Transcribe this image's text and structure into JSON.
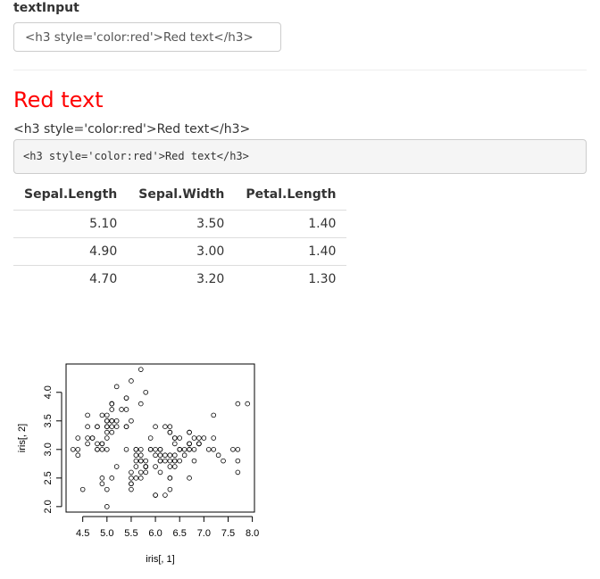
{
  "input": {
    "label": "textInput",
    "value": "<h3 style='color:red'>Red text</h3>"
  },
  "output": {
    "html_heading": "Red text",
    "raw_text": "<h3 style='color:red'>Red text</h3>",
    "code": "<h3 style='color:red'>Red text</h3>"
  },
  "table": {
    "headers": [
      "Sepal.Length",
      "Sepal.Width",
      "Petal.Length"
    ],
    "rows": [
      [
        "5.10",
        "3.50",
        "1.40"
      ],
      [
        "4.90",
        "3.00",
        "1.40"
      ],
      [
        "4.70",
        "3.20",
        "1.30"
      ]
    ]
  },
  "chart_data": {
    "type": "scatter",
    "title": "",
    "xlabel": "iris[, 1]",
    "ylabel": "iris[, 2]",
    "xlim": [
      4.3,
      7.9
    ],
    "ylim": [
      2.0,
      4.4
    ],
    "xticks": [
      "4.5",
      "5.0",
      "5.5",
      "6.0",
      "6.5",
      "7.0",
      "7.5",
      "8.0"
    ],
    "yticks": [
      "2.0",
      "2.5",
      "3.0",
      "3.5",
      "4.0"
    ],
    "x": [
      5.1,
      4.9,
      4.7,
      4.6,
      5.0,
      5.4,
      4.6,
      5.0,
      4.4,
      4.9,
      5.4,
      4.8,
      4.8,
      4.3,
      5.8,
      5.7,
      5.4,
      5.1,
      5.7,
      5.1,
      5.4,
      5.1,
      4.6,
      5.1,
      4.8,
      5.0,
      5.0,
      5.2,
      5.2,
      4.7,
      4.8,
      5.4,
      5.2,
      5.5,
      4.9,
      5.0,
      5.5,
      4.9,
      4.4,
      5.1,
      5.0,
      4.5,
      4.4,
      5.0,
      5.1,
      4.8,
      5.1,
      4.6,
      5.3,
      5.0,
      7.0,
      6.4,
      6.9,
      5.5,
      6.5,
      5.7,
      6.3,
      4.9,
      6.6,
      5.2,
      5.0,
      5.9,
      6.0,
      6.1,
      5.6,
      6.7,
      5.6,
      5.8,
      6.2,
      5.6,
      5.9,
      6.1,
      6.3,
      6.1,
      6.4,
      6.6,
      6.8,
      6.7,
      6.0,
      5.7,
      5.5,
      5.5,
      5.8,
      6.0,
      5.4,
      6.0,
      6.7,
      6.3,
      5.6,
      5.5,
      5.5,
      6.1,
      5.8,
      5.0,
      5.6,
      5.7,
      5.7,
      6.2,
      5.1,
      5.7,
      6.3,
      5.8,
      7.1,
      6.3,
      6.5,
      7.6,
      4.9,
      7.3,
      6.7,
      7.2,
      6.5,
      6.4,
      6.8,
      5.7,
      5.8,
      6.4,
      6.5,
      7.7,
      7.7,
      6.0,
      6.9,
      5.6,
      7.7,
      6.3,
      6.7,
      7.2,
      6.2,
      6.1,
      6.4,
      7.2,
      7.4,
      7.9,
      6.4,
      6.3,
      6.1,
      7.7,
      6.3,
      6.4,
      6.0,
      6.9,
      6.7,
      6.9,
      5.8,
      6.8,
      6.7,
      6.7,
      6.3,
      6.5,
      6.2,
      5.9
    ],
    "y": [
      3.5,
      3.0,
      3.2,
      3.1,
      3.6,
      3.9,
      3.4,
      3.4,
      2.9,
      3.1,
      3.7,
      3.4,
      3.0,
      3.0,
      4.0,
      4.4,
      3.9,
      3.5,
      3.8,
      3.8,
      3.4,
      3.7,
      3.6,
      3.3,
      3.4,
      3.0,
      3.4,
      3.5,
      3.4,
      3.2,
      3.1,
      3.4,
      4.1,
      4.2,
      3.1,
      3.2,
      3.5,
      3.6,
      3.0,
      3.4,
      3.5,
      2.3,
      3.2,
      3.5,
      3.8,
      3.0,
      3.8,
      3.2,
      3.7,
      3.3,
      3.2,
      3.2,
      3.1,
      2.3,
      2.8,
      2.8,
      3.3,
      2.4,
      2.9,
      2.7,
      2.0,
      3.0,
      2.2,
      2.9,
      2.9,
      3.1,
      3.0,
      2.7,
      2.2,
      2.5,
      3.2,
      2.8,
      2.5,
      2.8,
      2.9,
      3.0,
      2.8,
      3.0,
      2.9,
      2.6,
      2.4,
      2.4,
      2.7,
      2.7,
      3.0,
      3.4,
      3.1,
      2.3,
      3.0,
      2.5,
      2.6,
      3.0,
      2.6,
      2.3,
      2.7,
      3.0,
      2.9,
      2.9,
      2.5,
      2.8,
      3.3,
      2.7,
      3.0,
      2.9,
      3.0,
      3.0,
      2.5,
      2.9,
      2.5,
      3.6,
      3.2,
      2.7,
      3.0,
      2.5,
      2.8,
      3.2,
      3.0,
      3.8,
      2.6,
      2.2,
      3.2,
      2.8,
      2.8,
      2.7,
      3.3,
      3.2,
      2.8,
      3.0,
      2.8,
      3.0,
      2.8,
      3.8,
      2.8,
      2.8,
      2.6,
      3.0,
      3.4,
      3.1,
      3.0,
      3.1,
      3.1,
      3.1,
      2.7,
      3.2,
      3.3,
      3.0,
      2.5,
      3.0,
      3.4,
      3.0
    ]
  }
}
